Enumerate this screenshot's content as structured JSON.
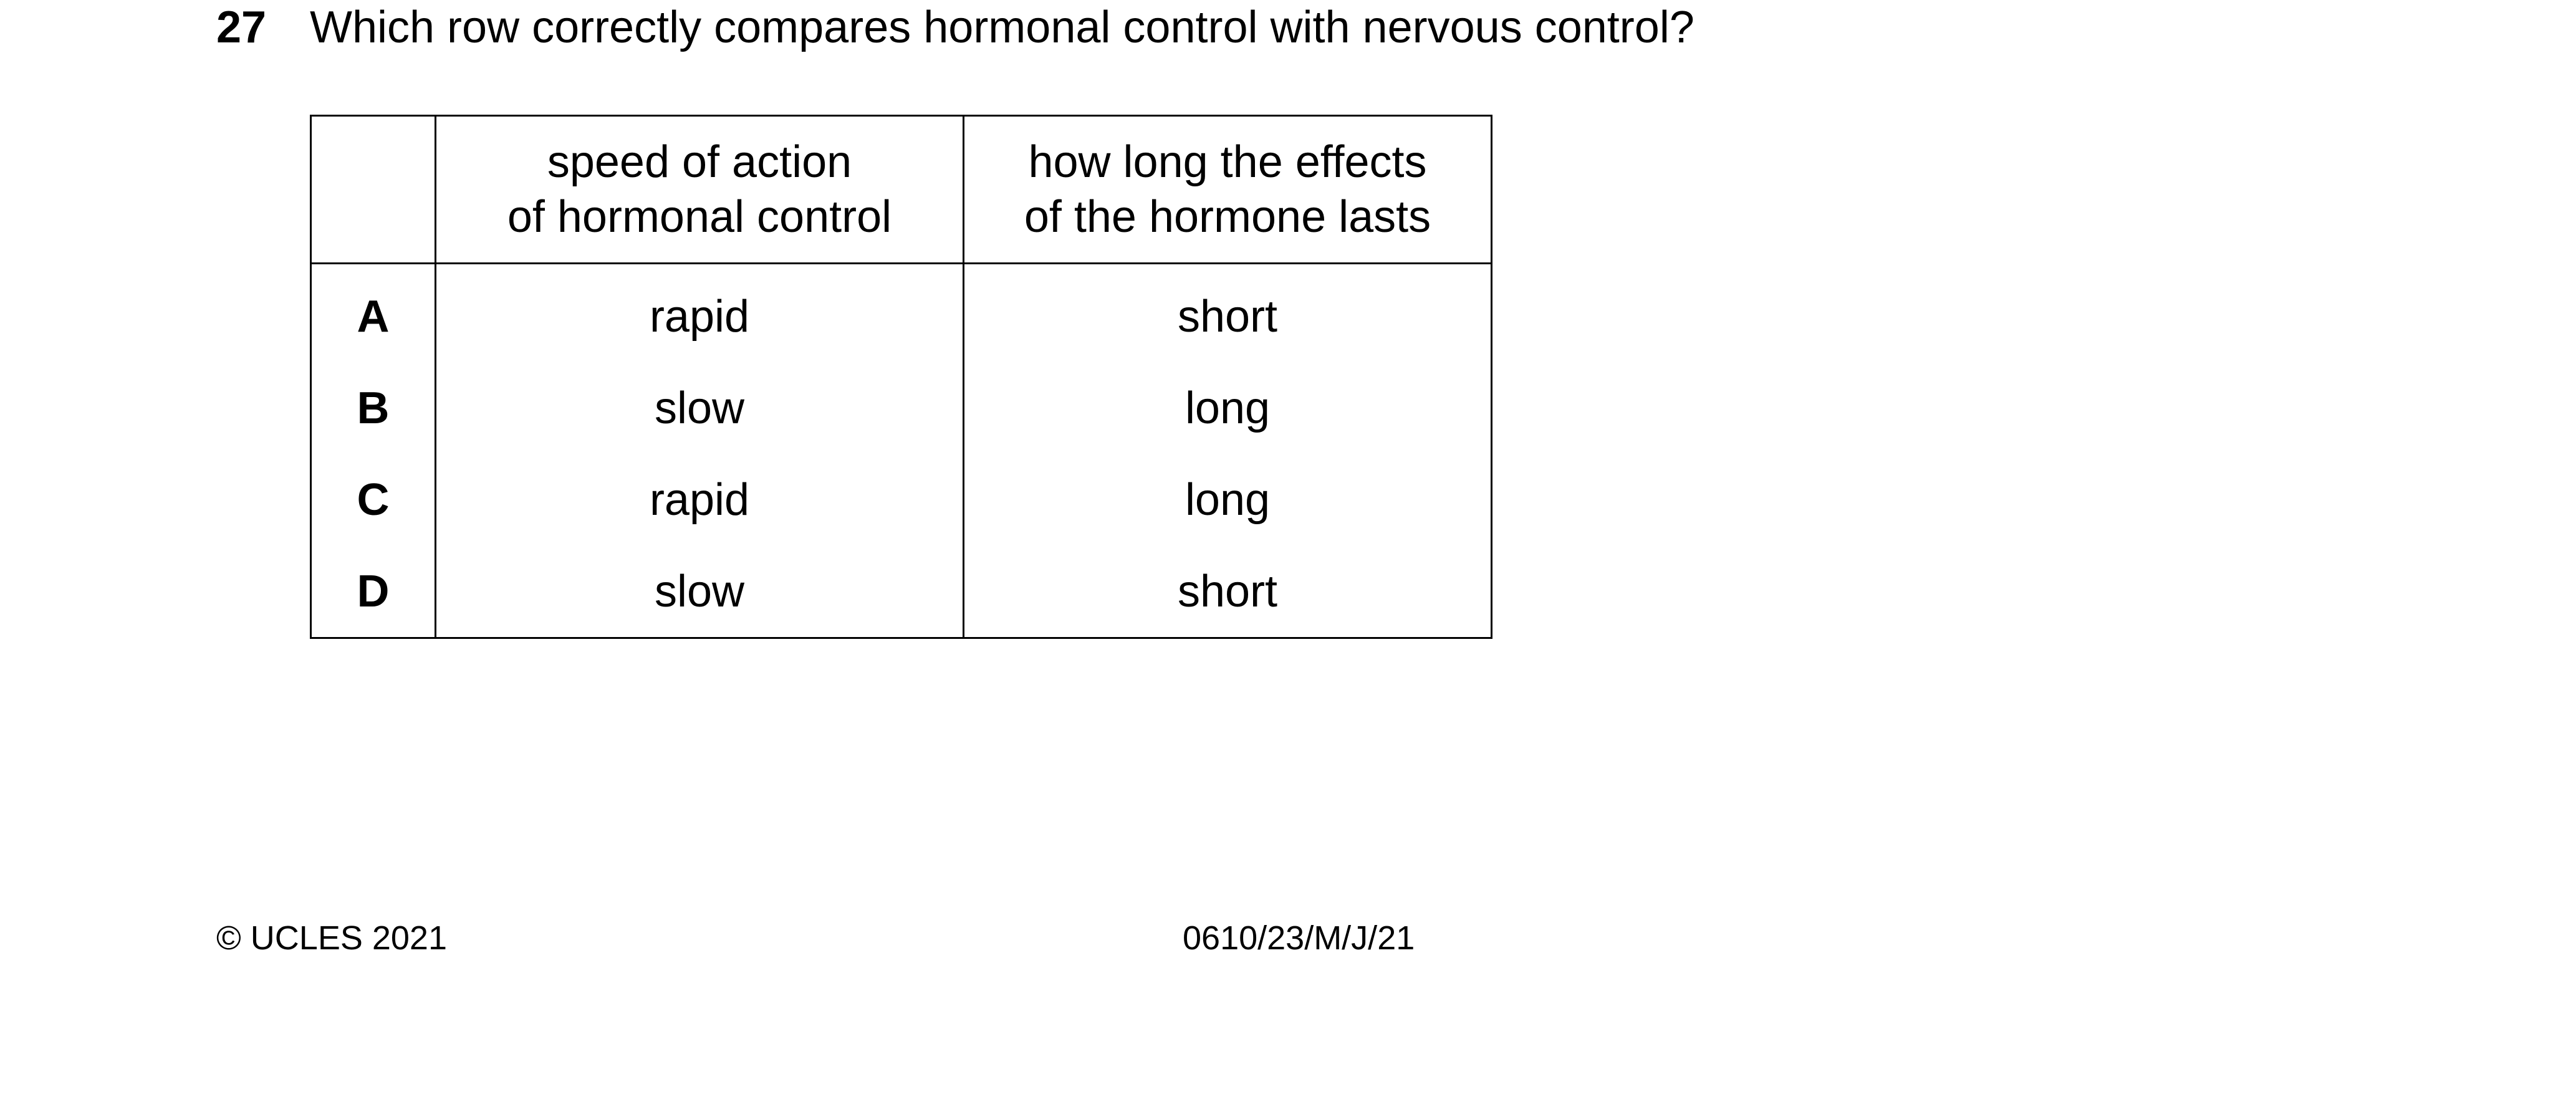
{
  "question": {
    "number": "27",
    "text": "Which row correctly compares hormonal control with nervous control?"
  },
  "table": {
    "headers": {
      "col1_line1": "speed of action",
      "col1_line2": "of hormonal control",
      "col2_line1": "how long the effects",
      "col2_line2": "of the hormone lasts"
    },
    "rows": [
      {
        "letter": "A",
        "speed": "rapid",
        "duration": "short"
      },
      {
        "letter": "B",
        "speed": "slow",
        "duration": "long"
      },
      {
        "letter": "C",
        "speed": "rapid",
        "duration": "long"
      },
      {
        "letter": "D",
        "speed": "slow",
        "duration": "short"
      }
    ]
  },
  "footer": {
    "copyright": "© UCLES 2021",
    "paper_code": "0610/23/M/J/21"
  }
}
